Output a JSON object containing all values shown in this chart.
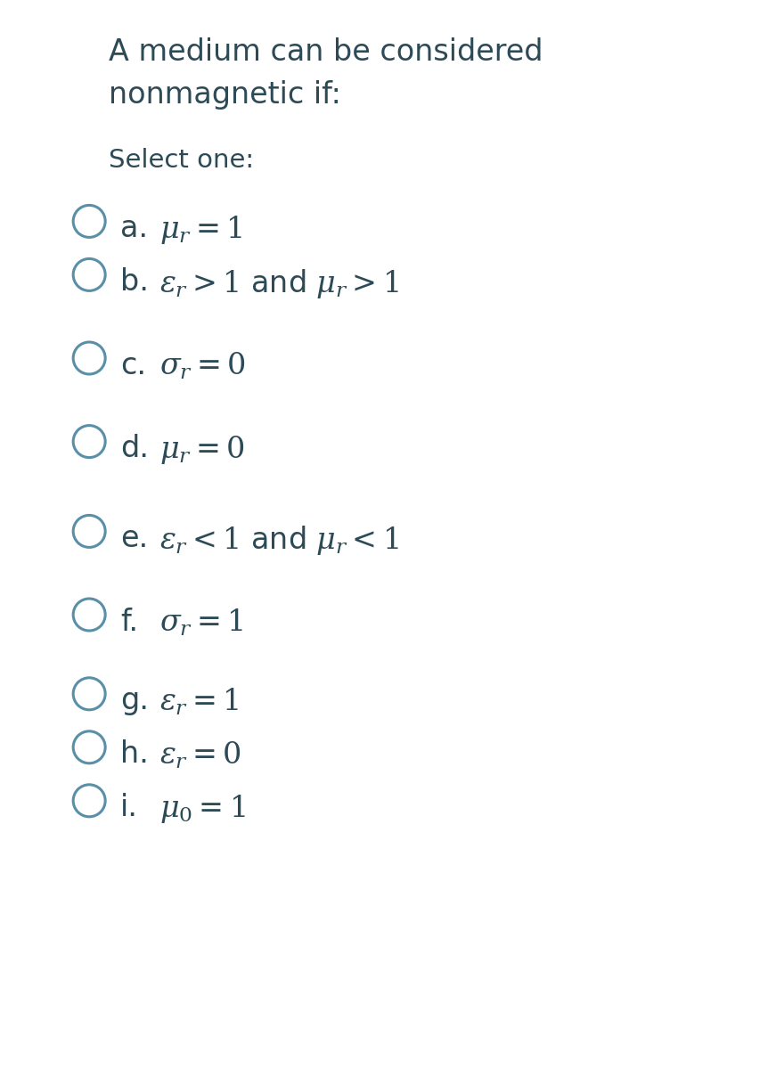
{
  "background_color": "#daeaf4",
  "left_panel_color": "#ffffff",
  "left_bar_color": "#c8dde8",
  "title_line1": "A medium can be considered",
  "title_line2": "nonmagnetic if:",
  "select_text": "Select one:",
  "options": [
    {
      "label": "a.",
      "math": "$\\mu_r = 1$"
    },
    {
      "label": "b.",
      "math": "$\\epsilon_r > 1$ and $\\mu_r > 1$"
    },
    {
      "label": "c.",
      "math": "$\\sigma_r = 0$"
    },
    {
      "label": "d.",
      "math": "$\\mu_r = 0$"
    },
    {
      "label": "e.",
      "math": "$\\epsilon_r < 1$ and $\\mu_r < 1$"
    },
    {
      "label": "f.",
      "math": "$\\sigma_r = 1$"
    },
    {
      "label": "g.",
      "math": "$\\epsilon_r = 1$"
    },
    {
      "label": "h.",
      "math": "$\\epsilon_r = 0$"
    },
    {
      "label": "i.",
      "math": "$\\mu_0 = 1$"
    }
  ],
  "circle_color": "#5a8fa8",
  "text_color": "#2d4a57",
  "title_fontsize": 24,
  "select_fontsize": 21,
  "option_fontsize": 24,
  "figsize": [
    8.71,
    12.0
  ],
  "dpi": 100
}
